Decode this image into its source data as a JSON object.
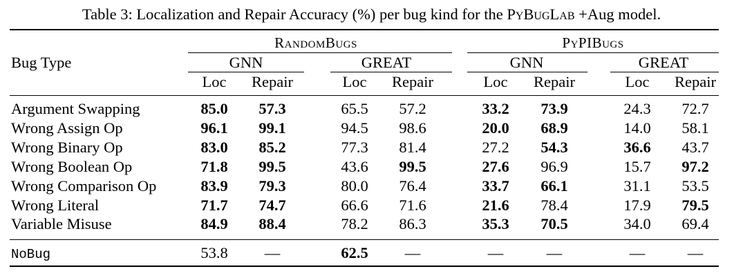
{
  "caption": {
    "prefix": "Table 3: Localization and Repair Accuracy (%) per bug kind for the ",
    "model": "PyBugLab",
    "suffix": " +Aug model."
  },
  "header": {
    "bug_type": "Bug Type",
    "groups": [
      "RandomBugs",
      "PyPIBugs"
    ],
    "models": [
      "GNN",
      "GREAT",
      "GNN",
      "GREAT"
    ],
    "metrics": [
      "Loc",
      "Repair",
      "Loc",
      "Repair",
      "Loc",
      "Repair",
      "Loc",
      "Repair"
    ]
  },
  "rows": [
    {
      "label": "Argument Swapping",
      "values": [
        "85.0",
        "57.3",
        "65.5",
        "57.2",
        "33.2",
        "73.9",
        "24.3",
        "72.7"
      ],
      "bold": [
        true,
        true,
        false,
        false,
        true,
        true,
        false,
        false
      ]
    },
    {
      "label": "Wrong Assign Op",
      "values": [
        "96.1",
        "99.1",
        "94.5",
        "98.6",
        "20.0",
        "68.9",
        "14.0",
        "58.1"
      ],
      "bold": [
        true,
        true,
        false,
        false,
        true,
        true,
        false,
        false
      ]
    },
    {
      "label": "Wrong Binary Op",
      "values": [
        "83.0",
        "85.2",
        "77.3",
        "81.4",
        "27.2",
        "54.3",
        "36.6",
        "43.7"
      ],
      "bold": [
        true,
        true,
        false,
        false,
        false,
        true,
        true,
        false
      ]
    },
    {
      "label": "Wrong Boolean Op",
      "values": [
        "71.8",
        "99.5",
        "43.6",
        "99.5",
        "27.6",
        "96.9",
        "15.7",
        "97.2"
      ],
      "bold": [
        true,
        true,
        false,
        true,
        true,
        false,
        false,
        true
      ]
    },
    {
      "label": "Wrong Comparison Op",
      "values": [
        "83.9",
        "79.3",
        "80.0",
        "76.4",
        "33.7",
        "66.1",
        "31.1",
        "53.5"
      ],
      "bold": [
        true,
        true,
        false,
        false,
        true,
        true,
        false,
        false
      ]
    },
    {
      "label": "Wrong Literal",
      "values": [
        "71.7",
        "74.7",
        "66.6",
        "71.6",
        "21.6",
        "78.4",
        "17.9",
        "79.5"
      ],
      "bold": [
        true,
        true,
        false,
        false,
        true,
        false,
        false,
        true
      ]
    },
    {
      "label": "Variable Misuse",
      "values": [
        "84.9",
        "88.4",
        "78.2",
        "86.3",
        "35.3",
        "70.5",
        "34.0",
        "69.4"
      ],
      "bold": [
        true,
        true,
        false,
        false,
        true,
        true,
        false,
        false
      ]
    }
  ],
  "nobug": {
    "label": "NoBug",
    "values": [
      "53.8",
      "—",
      "62.5",
      "—",
      "—",
      "—",
      "—",
      "—"
    ],
    "bold": [
      false,
      false,
      true,
      false,
      false,
      false,
      false,
      false
    ]
  }
}
